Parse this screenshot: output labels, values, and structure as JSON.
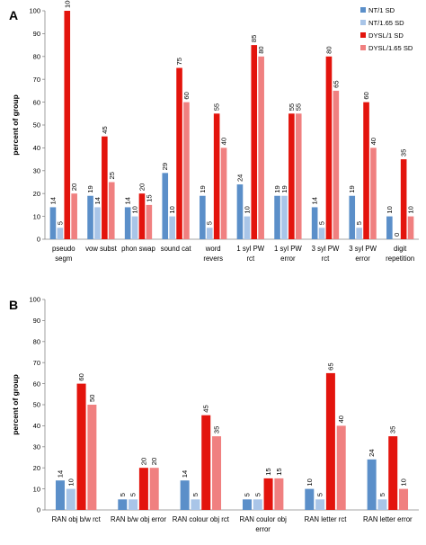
{
  "legend": [
    {
      "name": "NT/1 SD",
      "color": "#5b8fc9"
    },
    {
      "name": "NT/1.65 SD",
      "color": "#a9c5e8"
    },
    {
      "name": "DYSL/1 SD",
      "color": "#e3140d"
    },
    {
      "name": "DYSL/1.65 SD",
      "color": "#f08080"
    }
  ],
  "chart_data": [
    {
      "type": "bar",
      "panel": "A",
      "title": "",
      "xlabel": "",
      "ylabel": "percent of group",
      "ylim": [
        0,
        100
      ],
      "yticks": [
        0,
        10,
        20,
        30,
        40,
        50,
        60,
        70,
        80,
        90,
        100
      ],
      "grid": false,
      "legend_position": "top-right",
      "categories": [
        [
          "pseudo",
          "segm"
        ],
        [
          "vow subst"
        ],
        [
          "phon swap"
        ],
        [
          "sound cat"
        ],
        [
          "word",
          "revers"
        ],
        [
          "1 syl PW",
          "rct"
        ],
        [
          "1 syl PW",
          "error"
        ],
        [
          "3 syl PW",
          "rct"
        ],
        [
          "3 syl PW",
          "error"
        ],
        [
          "digit",
          "repetition"
        ]
      ],
      "series": [
        {
          "name": "NT/1 SD",
          "values": [
            14,
            19,
            14,
            29,
            19,
            24,
            19,
            14,
            19,
            10
          ]
        },
        {
          "name": "NT/1.65 SD",
          "values": [
            5,
            14,
            10,
            10,
            5,
            10,
            19,
            5,
            5,
            0
          ]
        },
        {
          "name": "DYSL/1 SD",
          "values": [
            100,
            45,
            20,
            75,
            55,
            85,
            55,
            80,
            60,
            35
          ]
        },
        {
          "name": "DYSL/1.65 SD",
          "values": [
            20,
            25,
            15,
            60,
            40,
            80,
            55,
            65,
            40,
            10
          ]
        }
      ]
    },
    {
      "type": "bar",
      "panel": "B",
      "title": "",
      "xlabel": "",
      "ylabel": "percent of group",
      "ylim": [
        0,
        100
      ],
      "yticks": [
        0,
        10,
        20,
        30,
        40,
        50,
        60,
        70,
        80,
        90,
        100
      ],
      "grid": false,
      "categories": [
        [
          "RAN obj b/w rct"
        ],
        [
          "RAN b/w obj error"
        ],
        [
          "RAN colour obj rct"
        ],
        [
          "RAN coulor obj",
          "error"
        ],
        [
          "RAN letter rct"
        ],
        [
          "RAN letter error"
        ]
      ],
      "series": [
        {
          "name": "NT/1 SD",
          "values": [
            14,
            5,
            14,
            5,
            10,
            24
          ]
        },
        {
          "name": "NT/1.65 SD",
          "values": [
            10,
            5,
            5,
            5,
            5,
            5
          ]
        },
        {
          "name": "DYSL/1 SD",
          "values": [
            60,
            20,
            45,
            15,
            65,
            35
          ]
        },
        {
          "name": "DYSL/1.65 SD",
          "values": [
            50,
            20,
            35,
            15,
            40,
            10
          ]
        }
      ]
    }
  ]
}
